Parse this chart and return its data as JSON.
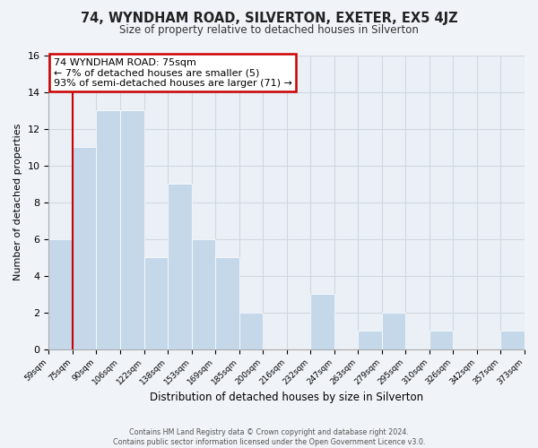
{
  "title": "74, WYNDHAM ROAD, SILVERTON, EXETER, EX5 4JZ",
  "subtitle": "Size of property relative to detached houses in Silverton",
  "xlabel": "Distribution of detached houses by size in Silverton",
  "ylabel": "Number of detached properties",
  "footer_lines": [
    "Contains HM Land Registry data © Crown copyright and database right 2024.",
    "Contains public sector information licensed under the Open Government Licence v3.0."
  ],
  "bin_labels": [
    "59sqm",
    "75sqm",
    "90sqm",
    "106sqm",
    "122sqm",
    "138sqm",
    "153sqm",
    "169sqm",
    "185sqm",
    "200sqm",
    "216sqm",
    "232sqm",
    "247sqm",
    "263sqm",
    "279sqm",
    "295sqm",
    "310sqm",
    "326sqm",
    "342sqm",
    "357sqm",
    "373sqm"
  ],
  "bar_heights": [
    6,
    11,
    13,
    13,
    5,
    9,
    6,
    5,
    2,
    0,
    0,
    3,
    0,
    1,
    2,
    0,
    1,
    0,
    0,
    1
  ],
  "bar_color": "#c5d8ea",
  "annotation_box_text": "74 WYNDHAM ROAD: 75sqm\n← 7% of detached houses are smaller (5)\n93% of semi-detached houses are larger (71) →",
  "annotation_box_edgecolor": "#cc0000",
  "annotation_box_facecolor": "#ffffff",
  "redline_x": 1,
  "ylim": [
    0,
    16
  ],
  "yticks": [
    0,
    2,
    4,
    6,
    8,
    10,
    12,
    14,
    16
  ],
  "grid_color": "#d0d8e0",
  "background_color": "#f0f4f8",
  "plot_bg_color": "#eaf0f6"
}
